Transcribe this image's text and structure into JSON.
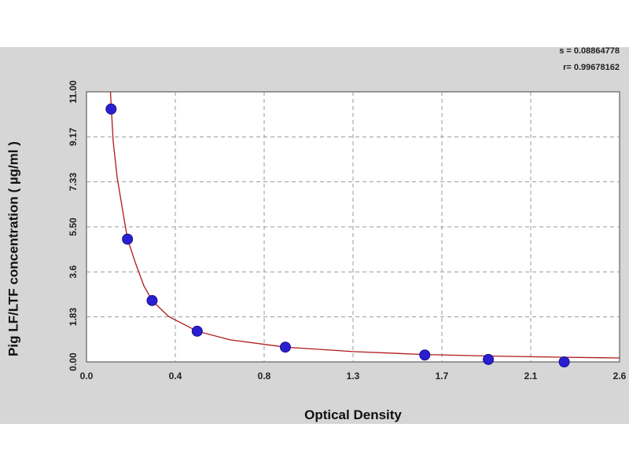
{
  "chart_data": {
    "type": "scatter",
    "xlabel": "Optical Density",
    "ylabel": "Pig LF/LTF concentration ( µg/ml )",
    "x_ticks": [
      "0.0",
      "0.4",
      "0.8",
      "1.3",
      "1.7",
      "2.1",
      "2.6"
    ],
    "y_ticks": [
      "0.00",
      "1.83",
      "3.6",
      "5.50",
      "7.33",
      "9.17",
      "11.00"
    ],
    "xlim": [
      0.0,
      2.6
    ],
    "ylim": [
      0.0,
      11.0
    ],
    "grid": true,
    "stats": [
      "s = 0.08864778",
      "r= 0.99678162"
    ],
    "colors": {
      "points": "#2a1fd0",
      "curve": "#b01818",
      "grid": "#999999",
      "frame": "#d6d6d6"
    },
    "points": [
      {
        "x": 0.12,
        "y": 10.3
      },
      {
        "x": 0.2,
        "y": 5.0
      },
      {
        "x": 0.32,
        "y": 2.5
      },
      {
        "x": 0.54,
        "y": 1.25
      },
      {
        "x": 0.97,
        "y": 0.6
      },
      {
        "x": 1.65,
        "y": 0.28
      },
      {
        "x": 1.96,
        "y": 0.1
      },
      {
        "x": 2.33,
        "y": 0.0
      }
    ],
    "fit_curve": [
      {
        "x": 0.117,
        "y": 11.0
      },
      {
        "x": 0.13,
        "y": 9.0
      },
      {
        "x": 0.15,
        "y": 7.5
      },
      {
        "x": 0.18,
        "y": 6.0
      },
      {
        "x": 0.2,
        "y": 5.0
      },
      {
        "x": 0.24,
        "y": 4.0
      },
      {
        "x": 0.28,
        "y": 3.1
      },
      {
        "x": 0.32,
        "y": 2.5
      },
      {
        "x": 0.4,
        "y": 1.85
      },
      {
        "x": 0.54,
        "y": 1.25
      },
      {
        "x": 0.7,
        "y": 0.9
      },
      {
        "x": 0.97,
        "y": 0.6
      },
      {
        "x": 1.3,
        "y": 0.42
      },
      {
        "x": 1.65,
        "y": 0.3
      },
      {
        "x": 1.96,
        "y": 0.24
      },
      {
        "x": 2.33,
        "y": 0.19
      },
      {
        "x": 2.6,
        "y": 0.16
      }
    ]
  }
}
